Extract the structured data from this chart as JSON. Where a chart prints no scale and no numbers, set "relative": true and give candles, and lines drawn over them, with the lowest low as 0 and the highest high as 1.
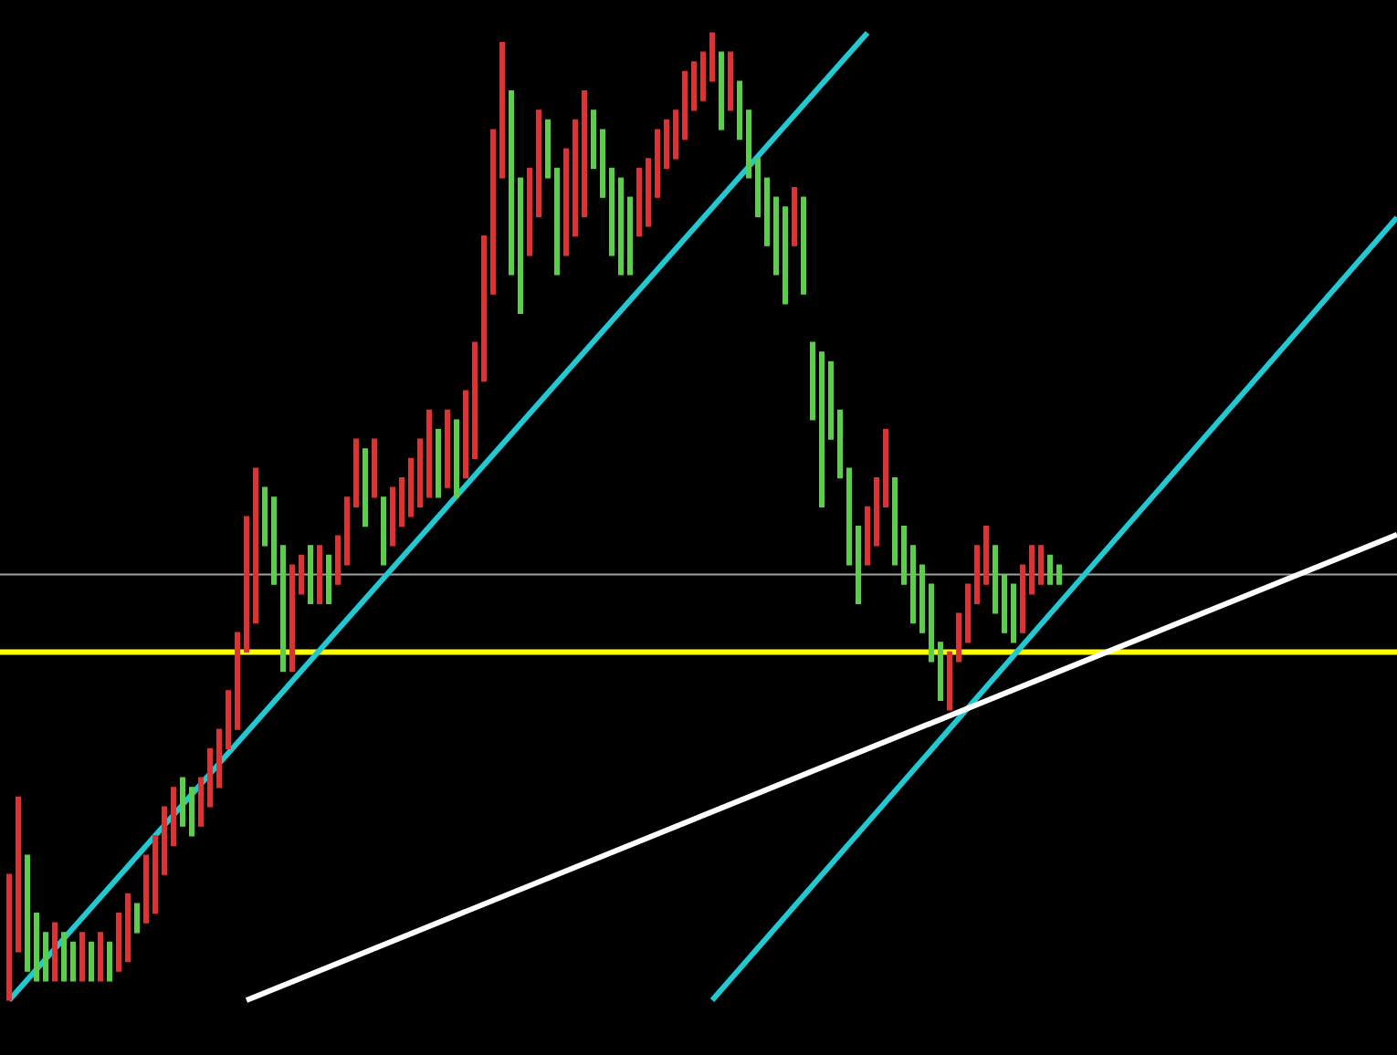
{
  "chart_data": {
    "type": "candlestick",
    "relative": true,
    "categories": [
      null,
      null,
      null,
      null,
      null,
      null,
      null,
      null,
      null,
      null,
      null,
      null,
      null,
      null,
      null,
      null,
      null,
      null,
      null,
      null,
      null,
      null,
      null,
      null,
      null,
      null,
      null,
      null,
      null,
      null,
      null,
      null,
      null,
      null,
      null,
      null,
      null,
      null,
      null,
      null,
      null,
      null,
      null,
      null,
      null,
      null,
      null,
      null,
      null,
      null,
      null,
      null,
      null,
      null,
      null,
      null,
      null,
      null,
      null,
      null,
      null,
      null,
      null,
      null,
      null,
      null,
      null,
      null,
      null,
      null,
      null,
      null,
      null,
      null,
      null,
      null,
      null,
      null,
      null,
      null,
      null,
      null,
      null,
      null,
      null,
      null,
      null,
      null,
      null,
      null,
      null,
      null,
      null,
      null,
      null,
      null,
      null,
      null,
      null,
      null,
      null,
      null,
      null,
      null,
      null,
      null,
      null,
      null,
      null,
      null,
      null,
      null,
      null,
      null,
      null,
      null
    ],
    "ohlc": [
      [
        0,
        0.13,
        0,
        0.13
      ],
      [
        0.05,
        0.21,
        0.05,
        0.21
      ],
      [
        0.15,
        0.15,
        0.03,
        0.03
      ],
      [
        0.09,
        0.09,
        0.02,
        0.02
      ],
      [
        0.07,
        0.07,
        0.02,
        0.02
      ],
      [
        0.02,
        0.08,
        0.02,
        0.08
      ],
      [
        0.07,
        0.07,
        0.02,
        0.02
      ],
      [
        0.06,
        0.06,
        0.02,
        0.02
      ],
      [
        0.02,
        0.07,
        0.02,
        0.07
      ],
      [
        0.06,
        0.06,
        0.02,
        0.02
      ],
      [
        0.02,
        0.07,
        0.02,
        0.07
      ],
      [
        0.06,
        0.06,
        0.02,
        0.02
      ],
      [
        0.03,
        0.09,
        0.03,
        0.09
      ],
      [
        0.04,
        0.11,
        0.04,
        0.11
      ],
      [
        0.1,
        0.1,
        0.07,
        0.07
      ],
      [
        0.08,
        0.15,
        0.08,
        0.15
      ],
      [
        0.09,
        0.17,
        0.09,
        0.17
      ],
      [
        0.13,
        0.2,
        0.13,
        0.2
      ],
      [
        0.16,
        0.22,
        0.16,
        0.22
      ],
      [
        0.23,
        0.23,
        0.18,
        0.18
      ],
      [
        0.22,
        0.22,
        0.17,
        0.17
      ],
      [
        0.18,
        0.23,
        0.18,
        0.23
      ],
      [
        0.2,
        0.26,
        0.2,
        0.26
      ],
      [
        0.22,
        0.28,
        0.22,
        0.28
      ],
      [
        0.26,
        0.32,
        0.26,
        0.32
      ],
      [
        0.28,
        0.38,
        0.28,
        0.38
      ],
      [
        0.36,
        0.5,
        0.36,
        0.5
      ],
      [
        0.39,
        0.55,
        0.39,
        0.55
      ],
      [
        0.53,
        0.53,
        0.47,
        0.47
      ],
      [
        0.52,
        0.52,
        0.43,
        0.43
      ],
      [
        0.47,
        0.47,
        0.34,
        0.34
      ],
      [
        0.34,
        0.45,
        0.34,
        0.45
      ],
      [
        0.42,
        0.46,
        0.42,
        0.46
      ],
      [
        0.47,
        0.47,
        0.41,
        0.41
      ],
      [
        0.41,
        0.47,
        0.41,
        0.47
      ],
      [
        0.46,
        0.46,
        0.41,
        0.41
      ],
      [
        0.43,
        0.48,
        0.43,
        0.48
      ],
      [
        0.45,
        0.52,
        0.45,
        0.52
      ],
      [
        0.51,
        0.58,
        0.51,
        0.58
      ],
      [
        0.57,
        0.57,
        0.49,
        0.49
      ],
      [
        0.52,
        0.58,
        0.52,
        0.58
      ],
      [
        0.52,
        0.52,
        0.45,
        0.45
      ],
      [
        0.47,
        0.53,
        0.47,
        0.53
      ],
      [
        0.49,
        0.54,
        0.49,
        0.54
      ],
      [
        0.5,
        0.56,
        0.5,
        0.56
      ],
      [
        0.51,
        0.58,
        0.51,
        0.58
      ],
      [
        0.52,
        0.61,
        0.52,
        0.61
      ],
      [
        0.59,
        0.59,
        0.52,
        0.52
      ],
      [
        0.53,
        0.61,
        0.53,
        0.61
      ],
      [
        0.6,
        0.6,
        0.52,
        0.52
      ],
      [
        0.54,
        0.63,
        0.54,
        0.63
      ],
      [
        0.56,
        0.68,
        0.56,
        0.68
      ],
      [
        0.64,
        0.79,
        0.64,
        0.79
      ],
      [
        0.73,
        0.9,
        0.73,
        0.9
      ],
      [
        0.85,
        0.99,
        0.85,
        0.99
      ],
      [
        0.94,
        0.94,
        0.75,
        0.75
      ],
      [
        0.85,
        0.85,
        0.71,
        0.71
      ],
      [
        0.77,
        0.86,
        0.77,
        0.86
      ],
      [
        0.81,
        0.92,
        0.81,
        0.92
      ],
      [
        0.91,
        0.91,
        0.85,
        0.85
      ],
      [
        0.86,
        0.86,
        0.75,
        0.75
      ],
      [
        0.77,
        0.88,
        0.77,
        0.88
      ],
      [
        0.79,
        0.91,
        0.79,
        0.91
      ],
      [
        0.81,
        0.94,
        0.81,
        0.94
      ],
      [
        0.92,
        0.92,
        0.86,
        0.86
      ],
      [
        0.9,
        0.9,
        0.83,
        0.83
      ],
      [
        0.86,
        0.86,
        0.77,
        0.77
      ],
      [
        0.85,
        0.85,
        0.75,
        0.75
      ],
      [
        0.83,
        0.83,
        0.75,
        0.75
      ],
      [
        0.79,
        0.86,
        0.79,
        0.86
      ],
      [
        0.8,
        0.87,
        0.8,
        0.87
      ],
      [
        0.83,
        0.9,
        0.83,
        0.9
      ],
      [
        0.86,
        0.91,
        0.86,
        0.91
      ],
      [
        0.87,
        0.92,
        0.87,
        0.92
      ],
      [
        0.89,
        0.96,
        0.89,
        0.96
      ],
      [
        0.92,
        0.97,
        0.92,
        0.97
      ],
      [
        0.93,
        0.98,
        0.93,
        0.98
      ],
      [
        0.95,
        1,
        0.95,
        1
      ],
      [
        0.98,
        0.98,
        0.9,
        0.9
      ],
      [
        0.92,
        0.98,
        0.92,
        0.98
      ],
      [
        0.95,
        0.95,
        0.89,
        0.89
      ],
      [
        0.92,
        0.92,
        0.85,
        0.85
      ],
      [
        0.87,
        0.87,
        0.81,
        0.81
      ],
      [
        0.85,
        0.85,
        0.78,
        0.78
      ],
      [
        0.83,
        0.83,
        0.75,
        0.75
      ],
      [
        0.82,
        0.82,
        0.72,
        0.72
      ],
      [
        0.78,
        0.84,
        0.78,
        0.84
      ],
      [
        0.83,
        0.83,
        0.73,
        0.73
      ],
      [
        0.68,
        0.68,
        0.6,
        0.6
      ],
      [
        0.67,
        0.67,
        0.51,
        0.51
      ],
      [
        0.66,
        0.66,
        0.58,
        0.58
      ],
      [
        0.61,
        0.61,
        0.54,
        0.54
      ],
      [
        0.55,
        0.55,
        0.45,
        0.45
      ],
      [
        0.49,
        0.49,
        0.41,
        0.41
      ],
      [
        0.45,
        0.51,
        0.45,
        0.51
      ],
      [
        0.47,
        0.54,
        0.47,
        0.54
      ],
      [
        0.51,
        0.59,
        0.51,
        0.59
      ],
      [
        0.54,
        0.54,
        0.45,
        0.45
      ],
      [
        0.49,
        0.49,
        0.43,
        0.43
      ],
      [
        0.47,
        0.47,
        0.39,
        0.39
      ],
      [
        0.45,
        0.45,
        0.38,
        0.38
      ],
      [
        0.43,
        0.43,
        0.35,
        0.35
      ],
      [
        0.37,
        0.37,
        0.31,
        0.31
      ],
      [
        0.3,
        0.36,
        0.3,
        0.36
      ],
      [
        0.35,
        0.4,
        0.35,
        0.4
      ],
      [
        0.37,
        0.43,
        0.37,
        0.43
      ],
      [
        0.41,
        0.47,
        0.41,
        0.47
      ],
      [
        0.43,
        0.49,
        0.43,
        0.49
      ],
      [
        0.47,
        0.47,
        0.4,
        0.4
      ],
      [
        0.44,
        0.44,
        0.38,
        0.38
      ],
      [
        0.43,
        0.43,
        0.37,
        0.37
      ],
      [
        0.38,
        0.45,
        0.38,
        0.45
      ],
      [
        0.42,
        0.47,
        0.42,
        0.47
      ],
      [
        0.43,
        0.47,
        0.43,
        0.47
      ],
      [
        0.46,
        0.46,
        0.43,
        0.43
      ],
      [
        0.45,
        0.45,
        0.43,
        0.43
      ]
    ],
    "colors": [
      "#e03232",
      "#e03232",
      "#5ad04a",
      "#5ad04a",
      "#5ad04a",
      "#e03232",
      "#5ad04a",
      "#5ad04a",
      "#e03232",
      "#5ad04a",
      "#e03232",
      "#5ad04a",
      "#e03232",
      "#e03232",
      "#5ad04a",
      "#e03232",
      "#e03232",
      "#e03232",
      "#e03232",
      "#5ad04a",
      "#5ad04a",
      "#e03232",
      "#e03232",
      "#e03232",
      "#e03232",
      "#e03232",
      "#e03232",
      "#e03232",
      "#5ad04a",
      "#5ad04a",
      "#5ad04a",
      "#e03232",
      "#e03232",
      "#5ad04a",
      "#e03232",
      "#5ad04a",
      "#e03232",
      "#e03232",
      "#e03232",
      "#5ad04a",
      "#e03232",
      "#5ad04a",
      "#e03232",
      "#e03232",
      "#e03232",
      "#e03232",
      "#e03232",
      "#5ad04a",
      "#e03232",
      "#5ad04a",
      "#e03232",
      "#e03232",
      "#e03232",
      "#e03232",
      "#e03232",
      "#5ad04a",
      "#5ad04a",
      "#e03232",
      "#e03232",
      "#5ad04a",
      "#5ad04a",
      "#e03232",
      "#e03232",
      "#e03232",
      "#5ad04a",
      "#5ad04a",
      "#5ad04a",
      "#5ad04a",
      "#5ad04a",
      "#e03232",
      "#e03232",
      "#e03232",
      "#e03232",
      "#e03232",
      "#e03232",
      "#e03232",
      "#e03232",
      "#e03232",
      "#5ad04a",
      "#e03232",
      "#5ad04a",
      "#5ad04a",
      "#5ad04a",
      "#5ad04a",
      "#5ad04a",
      "#5ad04a",
      "#e03232",
      "#5ad04a",
      "#5ad04a",
      "#5ad04a",
      "#5ad04a",
      "#5ad04a",
      "#5ad04a",
      "#5ad04a",
      "#e03232",
      "#e03232",
      "#e03232",
      "#5ad04a",
      "#5ad04a",
      "#5ad04a",
      "#5ad04a",
      "#5ad04a",
      "#5ad04a",
      "#e03232",
      "#e03232",
      "#e03232",
      "#e03232",
      "#e03232",
      "#5ad04a",
      "#5ad04a",
      "#5ad04a",
      "#e03232",
      "#e03232",
      "#e03232",
      "#5ad04a",
      "#5ad04a"
    ],
    "series": [
      {
        "type": "line",
        "color": "#22c8d2",
        "values": [
          0,
          null,
          null,
          null,
          null,
          null,
          null,
          null,
          null,
          null,
          null,
          null,
          null,
          null,
          null,
          null,
          null,
          null,
          null,
          null,
          null,
          null,
          null,
          null,
          null,
          null,
          null,
          null,
          null,
          null,
          null,
          null,
          null,
          null,
          null,
          null,
          null,
          null,
          null,
          null,
          null,
          null,
          null,
          null,
          null,
          null,
          null,
          null,
          null,
          null,
          null,
          null,
          null,
          null,
          null,
          null,
          null,
          null,
          null,
          null,
          null,
          null,
          null,
          null,
          null,
          null,
          null,
          null,
          null,
          null,
          null,
          null,
          null,
          null,
          null,
          null,
          null,
          null,
          null,
          null,
          null,
          null,
          null,
          null,
          null,
          null,
          null,
          null,
          null,
          null,
          null,
          null,
          null,
          null,
          1,
          null,
          null,
          null,
          null,
          null,
          null,
          null,
          null,
          null,
          null,
          null,
          null,
          null,
          null,
          null,
          null,
          null,
          null,
          null,
          null,
          null
        ]
      },
      {
        "type": "line",
        "color": "#22c8d2",
        "values": [
          null,
          null,
          null,
          null,
          null,
          null,
          null,
          null,
          null,
          null,
          null,
          null,
          null,
          null,
          null,
          null,
          null,
          null,
          null,
          null,
          null,
          null,
          null,
          null,
          null,
          null,
          null,
          null,
          null,
          null,
          null,
          null,
          null,
          null,
          null,
          null,
          null,
          null,
          null,
          null,
          null,
          null,
          null,
          null,
          null,
          null,
          null,
          null,
          null,
          null,
          null,
          null,
          null,
          null,
          null,
          null,
          null,
          null,
          null,
          null,
          null,
          null,
          null,
          null,
          null,
          null,
          null,
          null,
          null,
          null,
          null,
          null,
          null,
          null,
          null,
          null,
          null,
          0,
          null,
          null,
          null,
          null,
          null,
          null,
          null,
          null,
          null,
          null,
          null,
          null,
          null,
          null,
          null,
          null,
          null,
          null,
          null,
          null,
          null,
          null,
          null,
          null,
          null,
          null,
          null,
          null,
          null,
          null,
          null,
          null,
          null,
          null,
          null,
          null,
          null,
          0.41
        ]
      },
      {
        "type": "line",
        "color": "#ffffff",
        "values": [
          null,
          null,
          null,
          null,
          null,
          null,
          null,
          null,
          null,
          null,
          null,
          null,
          null,
          null,
          null,
          null,
          null,
          null,
          null,
          null,
          null,
          null,
          null,
          null,
          null,
          null,
          0,
          null,
          null,
          null,
          null,
          null,
          null,
          null,
          null,
          null,
          null,
          null,
          null,
          null,
          null,
          null,
          null,
          null,
          null,
          null,
          null,
          null,
          null,
          null,
          null,
          null,
          null,
          null,
          null,
          null,
          null,
          null,
          null,
          null,
          null,
          null,
          null,
          null,
          null,
          null,
          null,
          null,
          null,
          null,
          null,
          null,
          null,
          null,
          null,
          null,
          null,
          null,
          null,
          null,
          null,
          null,
          null,
          null,
          null,
          null,
          null,
          null,
          null,
          null,
          null,
          null,
          null,
          null,
          null,
          null,
          null,
          null,
          null,
          null,
          null,
          null,
          null,
          null,
          null,
          null,
          null,
          null,
          null,
          null,
          null,
          null,
          null,
          null,
          null,
          0.34
        ]
      }
    ],
    "ref_lines": [
      {
        "axis": "y",
        "value": 0.36,
        "color": "#ffff00"
      },
      {
        "axis": "y",
        "value": 0.44,
        "color": "#a0a0a0"
      }
    ]
  }
}
